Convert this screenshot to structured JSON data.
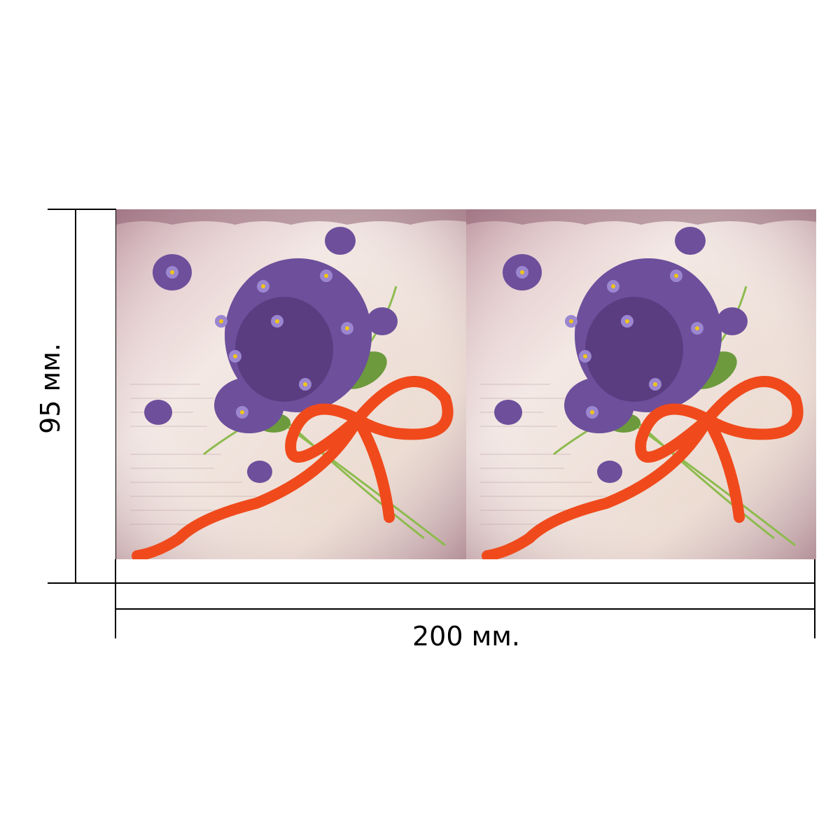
{
  "dimensions": {
    "width_label": "200 мм.",
    "height_label": "95 мм."
  },
  "artwork": {
    "panel_count": 2,
    "subject": "violet-bouquet-with-orange-bow",
    "colors": {
      "background_light": "#f3e8e4",
      "background_dark": "#b58a95",
      "violet": "#6d4f9c",
      "violet_dark": "#4b2d6b",
      "ribbon": "#f04a1c",
      "leaf": "#6c9a3c",
      "stem": "#8dbb4e"
    }
  }
}
